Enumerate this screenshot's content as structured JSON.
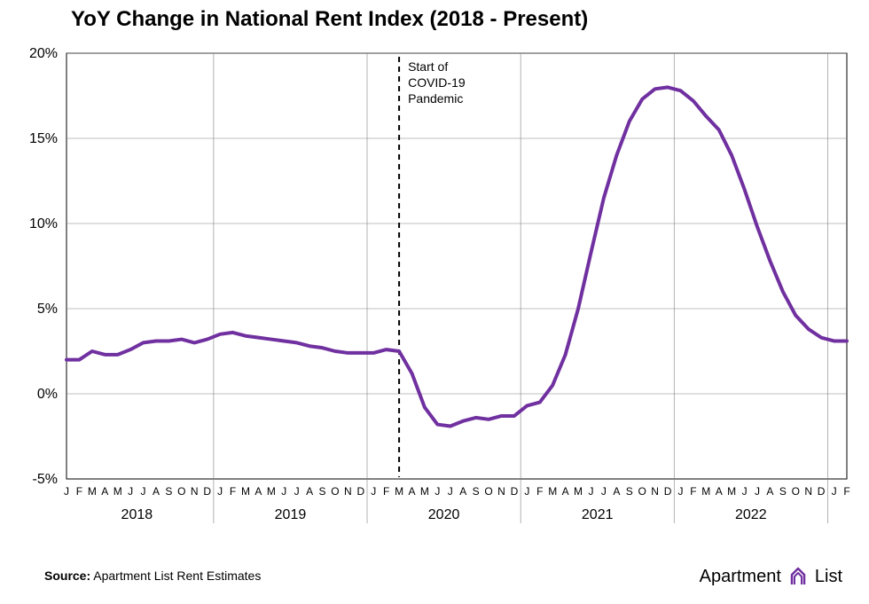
{
  "chart": {
    "type": "line",
    "title": "YoY Change in National Rent Index (2018 - Present)",
    "title_fontsize": 24,
    "title_fontweight": 700,
    "background_color": "#ffffff",
    "plot_border_color": "#000000",
    "grid_color": "#808080",
    "grid_width": 0.6,
    "line_color": "#7030a0",
    "line_width": 4,
    "ylim": [
      -5,
      20
    ],
    "yticks": [
      -5,
      0,
      5,
      10,
      15,
      20
    ],
    "ytick_labels": [
      "-5%",
      "0%",
      "5%",
      "10%",
      "15%",
      "20%"
    ],
    "ytick_fontsize": 16,
    "x_months_per_year": [
      "J",
      "F",
      "M",
      "A",
      "M",
      "J",
      "J",
      "A",
      "S",
      "O",
      "N",
      "D"
    ],
    "x_tail_months": [
      "J",
      "F"
    ],
    "x_year_labels": [
      "2018",
      "2019",
      "2020",
      "2021",
      "2022"
    ],
    "year_label_fontsize": 16,
    "month_label_fontsize": 12,
    "x_divider_color": "#808080",
    "x_divider_width": 0.6,
    "annotation": {
      "text_lines": [
        "Start of",
        "COVID-19",
        "Pandemic"
      ],
      "fontsize": 14,
      "line_dash": "6,5",
      "line_color": "#000000",
      "line_width": 2,
      "x_index": 26
    },
    "data": {
      "values": [
        2.0,
        2.0,
        2.5,
        2.3,
        2.3,
        2.6,
        3.0,
        3.1,
        3.1,
        3.2,
        3.0,
        3.2,
        3.5,
        3.6,
        3.4,
        3.3,
        3.2,
        3.1,
        3.0,
        2.8,
        2.7,
        2.5,
        2.4,
        2.4,
        2.4,
        2.6,
        2.5,
        1.2,
        -0.8,
        -1.8,
        -1.9,
        -1.6,
        -1.4,
        -1.5,
        -1.3,
        -1.3,
        -0.7,
        -0.5,
        0.5,
        2.3,
        5.0,
        8.3,
        11.5,
        14.0,
        16.0,
        17.3,
        17.9,
        18.0,
        17.8,
        17.2,
        16.3,
        15.5,
        14.0,
        12.0,
        9.8,
        7.8,
        6.0,
        4.6,
        3.8,
        3.3,
        3.1,
        3.1
      ]
    }
  },
  "source": {
    "label": "Source:",
    "text": "Apartment List Rent Estimates",
    "fontsize": 14
  },
  "brand": {
    "name": "Apartment",
    "suffix": "List",
    "logo_color": "#7030a0",
    "fontsize": 20
  }
}
